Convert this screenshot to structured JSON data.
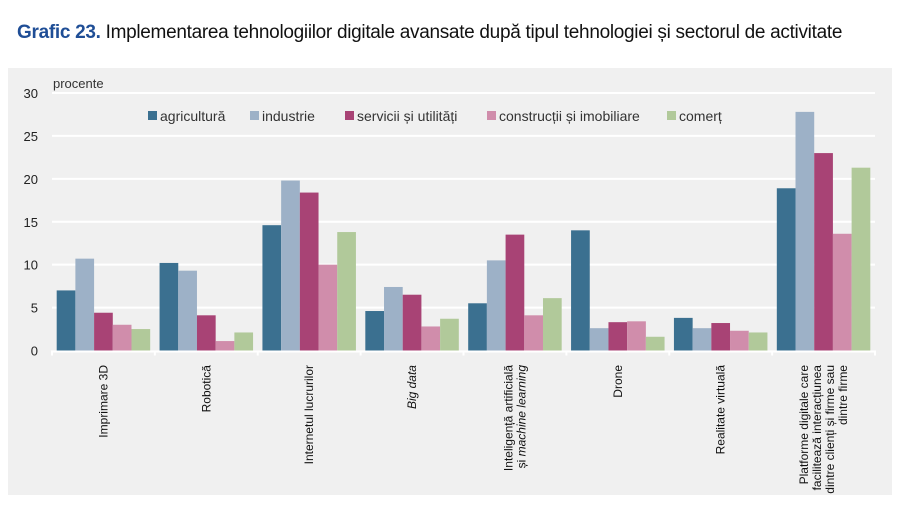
{
  "title": {
    "label": "Grafic 23.",
    "text": "Implementarea tehnologiilor digitale avansate după tipul tehnologiei și sectorul de activitate"
  },
  "chart_data": {
    "type": "bar",
    "ylabel": "procente",
    "ylim": [
      0,
      30
    ],
    "yticks": [
      0,
      5,
      10,
      15,
      20,
      25,
      30
    ],
    "grid": true,
    "legend": "top",
    "categories": [
      {
        "lines": [
          [
            {
              "t": "Imprimare 3D"
            }
          ]
        ]
      },
      {
        "lines": [
          [
            {
              "t": "Robotică"
            }
          ]
        ]
      },
      {
        "lines": [
          [
            {
              "t": "Internetul lucrurilor"
            }
          ]
        ]
      },
      {
        "lines": [
          [
            {
              "t": "Big data",
              "i": true
            }
          ]
        ]
      },
      {
        "lines": [
          [
            {
              "t": "Inteligență artificială"
            }
          ],
          [
            {
              "t": "și "
            },
            {
              "t": "machine learning",
              "i": true
            }
          ]
        ]
      },
      {
        "lines": [
          [
            {
              "t": "Drone"
            }
          ]
        ]
      },
      {
        "lines": [
          [
            {
              "t": "Realitate virtuală"
            }
          ]
        ]
      },
      {
        "lines": [
          [
            {
              "t": "Platforme digitale care"
            }
          ],
          [
            {
              "t": "facilitează interacțiunea"
            }
          ],
          [
            {
              "t": "dintre clienți și firme sau"
            }
          ],
          [
            {
              "t": "dintre firme"
            }
          ]
        ]
      }
    ],
    "series": [
      {
        "name": "agricultură",
        "color": "#3b7090",
        "values": [
          7.0,
          10.2,
          14.6,
          4.6,
          5.5,
          14.0,
          3.8,
          18.9
        ]
      },
      {
        "name": "industrie",
        "color": "#9db1c7",
        "values": [
          10.7,
          9.3,
          19.8,
          7.4,
          10.5,
          2.6,
          2.6,
          27.8
        ]
      },
      {
        "name": "servicii și utilități",
        "color": "#a84375",
        "values": [
          4.4,
          4.1,
          18.4,
          6.5,
          13.5,
          3.3,
          3.2,
          23.0
        ]
      },
      {
        "name": "construcții și imobiliare",
        "color": "#d08dab",
        "values": [
          3.0,
          1.1,
          10.0,
          2.8,
          4.1,
          3.4,
          2.3,
          13.6
        ]
      },
      {
        "name": "comerț",
        "color": "#b1c99a",
        "values": [
          2.5,
          2.1,
          13.8,
          3.7,
          6.1,
          1.6,
          2.1,
          21.3
        ]
      }
    ]
  }
}
